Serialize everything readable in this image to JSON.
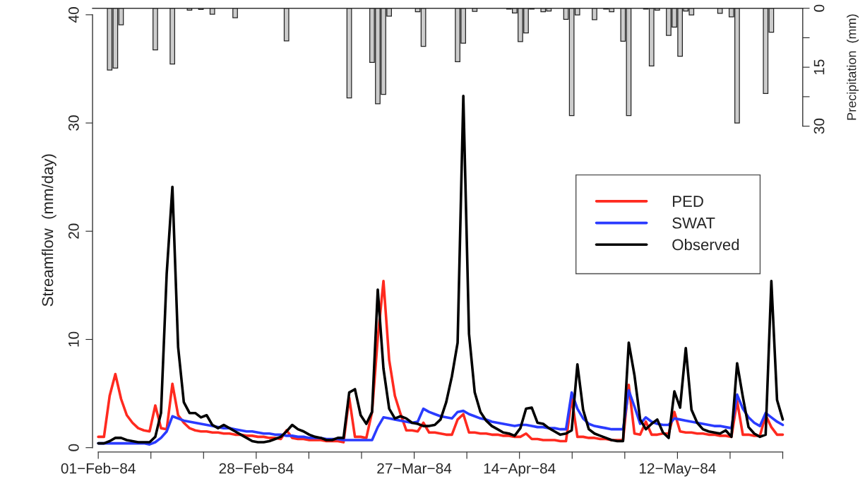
{
  "chart_data": {
    "type": "line",
    "ylabel": "Streamflow  (mm/day)",
    "y2label": "Precipitation  (mm)",
    "x": [
      "1984-02-01",
      "1984-02-02",
      "1984-02-03",
      "1984-02-04",
      "1984-02-05",
      "1984-02-06",
      "1984-02-07",
      "1984-02-08",
      "1984-02-09",
      "1984-02-10",
      "1984-02-11",
      "1984-02-12",
      "1984-02-13",
      "1984-02-14",
      "1984-02-15",
      "1984-02-16",
      "1984-02-17",
      "1984-02-18",
      "1984-02-19",
      "1984-02-20",
      "1984-02-21",
      "1984-02-22",
      "1984-02-23",
      "1984-02-24",
      "1984-02-25",
      "1984-02-26",
      "1984-02-27",
      "1984-02-28",
      "1984-02-29",
      "1984-03-01",
      "1984-03-02",
      "1984-03-03",
      "1984-03-04",
      "1984-03-05",
      "1984-03-06",
      "1984-03-07",
      "1984-03-08",
      "1984-03-09",
      "1984-03-10",
      "1984-03-11",
      "1984-03-12",
      "1984-03-13",
      "1984-03-14",
      "1984-03-15",
      "1984-03-16",
      "1984-03-17",
      "1984-03-18",
      "1984-03-19",
      "1984-03-20",
      "1984-03-21",
      "1984-03-22",
      "1984-03-23",
      "1984-03-24",
      "1984-03-25",
      "1984-03-26",
      "1984-03-27",
      "1984-03-28",
      "1984-03-29",
      "1984-03-30",
      "1984-03-31",
      "1984-04-01",
      "1984-04-02",
      "1984-04-03",
      "1984-04-04",
      "1984-04-05",
      "1984-04-06",
      "1984-04-07",
      "1984-04-08",
      "1984-04-09",
      "1984-04-10",
      "1984-04-11",
      "1984-04-12",
      "1984-04-13",
      "1984-04-14",
      "1984-04-15",
      "1984-04-16",
      "1984-04-17",
      "1984-04-18",
      "1984-04-19",
      "1984-04-20",
      "1984-04-21",
      "1984-04-22",
      "1984-04-23",
      "1984-04-24",
      "1984-04-25",
      "1984-04-26",
      "1984-04-27",
      "1984-04-28",
      "1984-04-29",
      "1984-04-30",
      "1984-05-01",
      "1984-05-02",
      "1984-05-03",
      "1984-05-04",
      "1984-05-05",
      "1984-05-06",
      "1984-05-07",
      "1984-05-08",
      "1984-05-09",
      "1984-05-10",
      "1984-05-11",
      "1984-05-12",
      "1984-05-13",
      "1984-05-14",
      "1984-05-15",
      "1984-05-16",
      "1984-05-17",
      "1984-05-18",
      "1984-05-19",
      "1984-05-20",
      "1984-05-21",
      "1984-05-22",
      "1984-05-23",
      "1984-05-24",
      "1984-05-25",
      "1984-05-26",
      "1984-05-27",
      "1984-05-28",
      "1984-05-29",
      "1984-05-30",
      "1984-05-31"
    ],
    "xlim": [
      "1984-01-31",
      "1984-06-03T12:00"
    ],
    "xticks": [
      {
        "value": "1984-02-01",
        "label": "01−Feb−84"
      },
      {
        "value": "1984-02-10T05:32",
        "label": null
      },
      {
        "value": "1984-02-19T11:05",
        "label": null
      },
      {
        "value": "1984-02-28T16:37",
        "label": "28−Feb−84"
      },
      {
        "value": "1984-03-08T22:09",
        "label": null
      },
      {
        "value": "1984-03-18T03:42",
        "label": null
      },
      {
        "value": "1984-03-27T09:14",
        "label": "27−Mar−84"
      },
      {
        "value": "1984-04-05T14:46",
        "label": null
      },
      {
        "value": "1984-04-14T20:18",
        "label": "14−Apr−84"
      },
      {
        "value": "1984-04-24T01:51",
        "label": null
      },
      {
        "value": "1984-05-03T07:23",
        "label": null
      },
      {
        "value": "1984-05-12T12:55",
        "label": "12−May−84"
      },
      {
        "value": "1984-05-21T18:28",
        "label": null
      },
      {
        "value": "1984-05-31",
        "label": null
      }
    ],
    "ylim": [
      -0.4,
      40.6
    ],
    "yticks": [
      0,
      10,
      20,
      30,
      40
    ],
    "y2lim": [
      112.9,
      0
    ],
    "y2ticks": [
      0,
      {
        "value": 7.5,
        "label": null
      },
      15,
      {
        "value": 22.5,
        "label": null
      },
      30
    ],
    "legend": "right",
    "series": [
      {
        "name": "PED",
        "color": "#ff2a1f",
        "values": [
          1.0,
          1.0,
          4.8,
          6.8,
          4.5,
          3.0,
          2.3,
          1.8,
          1.6,
          1.5,
          3.9,
          1.8,
          1.7,
          5.9,
          3.0,
          2.3,
          1.8,
          1.6,
          1.5,
          1.5,
          1.4,
          1.4,
          1.3,
          1.3,
          1.2,
          1.2,
          1.1,
          1.1,
          1.0,
          1.0,
          0.9,
          0.9,
          0.8,
          1.6,
          0.9,
          0.8,
          0.8,
          0.7,
          0.7,
          0.7,
          0.6,
          0.6,
          0.6,
          0.5,
          4.6,
          1.0,
          1.0,
          0.9,
          3.3,
          10.1,
          15.4,
          8.1,
          4.8,
          3.1,
          1.6,
          1.6,
          1.5,
          2.3,
          1.4,
          1.4,
          1.3,
          1.2,
          1.2,
          2.6,
          3.1,
          1.4,
          1.4,
          1.3,
          1.3,
          1.2,
          1.2,
          1.1,
          1.1,
          1.0,
          1.0,
          1.3,
          0.8,
          0.8,
          0.7,
          0.7,
          0.7,
          0.6,
          0.6,
          4.6,
          1.0,
          1.0,
          0.9,
          0.9,
          0.8,
          0.8,
          0.7,
          0.7,
          0.7,
          5.8,
          1.3,
          1.2,
          2.4,
          1.2,
          1.2,
          1.3,
          1.3,
          3.3,
          1.5,
          1.4,
          1.4,
          1.3,
          1.3,
          1.2,
          1.2,
          1.1,
          1.1,
          1.0,
          4.3,
          1.2,
          1.2,
          1.1,
          1.1,
          3.0,
          1.9,
          1.2,
          1.2
        ]
      },
      {
        "name": "SWAT",
        "color": "#2a3bff",
        "values": [
          0.4,
          0.4,
          0.4,
          0.4,
          0.4,
          0.4,
          0.4,
          0.4,
          0.4,
          0.3,
          0.5,
          0.9,
          1.5,
          2.9,
          2.7,
          2.5,
          2.4,
          2.3,
          2.2,
          2.1,
          2.0,
          1.9,
          1.8,
          1.8,
          1.7,
          1.6,
          1.5,
          1.5,
          1.4,
          1.3,
          1.3,
          1.2,
          1.2,
          1.1,
          1.1,
          1.0,
          1.0,
          0.9,
          0.9,
          0.9,
          0.8,
          0.8,
          0.8,
          0.7,
          0.7,
          0.7,
          0.7,
          0.7,
          0.7,
          1.9,
          2.8,
          2.7,
          2.6,
          2.5,
          2.4,
          2.3,
          2.4,
          3.6,
          3.3,
          3.1,
          2.9,
          2.8,
          2.7,
          3.3,
          3.4,
          3.1,
          2.9,
          2.7,
          2.6,
          2.4,
          2.3,
          2.2,
          2.1,
          2.0,
          2.1,
          2.1,
          2.0,
          1.9,
          1.9,
          1.8,
          1.8,
          1.7,
          1.7,
          5.1,
          3.6,
          2.7,
          2.2,
          2.0,
          1.9,
          1.8,
          1.7,
          1.7,
          1.7,
          5.3,
          3.8,
          2.2,
          2.8,
          2.4,
          2.2,
          2.1,
          2.1,
          2.7,
          2.6,
          2.5,
          2.4,
          2.3,
          2.2,
          2.1,
          2.0,
          2.0,
          1.9,
          1.8,
          4.9,
          3.6,
          2.8,
          2.3,
          2.0,
          3.2,
          2.8,
          2.4,
          2.1
        ]
      },
      {
        "name": "Observed",
        "color": "#000000",
        "values": [
          0.4,
          0.4,
          0.6,
          0.9,
          0.9,
          0.7,
          0.6,
          0.5,
          0.5,
          0.5,
          1.0,
          3.2,
          16.1,
          24.1,
          9.3,
          4.2,
          3.2,
          3.2,
          2.8,
          3.0,
          2.1,
          1.8,
          2.1,
          1.8,
          1.5,
          1.2,
          0.9,
          0.6,
          0.5,
          0.5,
          0.6,
          0.8,
          1.0,
          1.5,
          2.1,
          1.7,
          1.5,
          1.2,
          1.0,
          0.9,
          0.7,
          0.7,
          0.9,
          0.9,
          5.1,
          5.4,
          3.0,
          2.2,
          3.3,
          14.6,
          7.3,
          3.6,
          2.7,
          2.9,
          2.7,
          2.3,
          2.2,
          2.0,
          2.0,
          2.1,
          2.6,
          4.2,
          6.6,
          9.7,
          32.5,
          10.5,
          5.1,
          3.3,
          2.5,
          2.0,
          1.7,
          1.4,
          1.3,
          1.1,
          1.8,
          3.6,
          3.7,
          2.3,
          2.2,
          1.8,
          1.5,
          1.2,
          1.3,
          1.6,
          7.7,
          3.5,
          1.7,
          1.3,
          1.1,
          0.9,
          0.7,
          0.6,
          0.6,
          9.7,
          6.7,
          2.6,
          1.7,
          2.2,
          2.6,
          1.4,
          0.9,
          5.2,
          3.7,
          9.2,
          3.5,
          2.3,
          1.7,
          1.5,
          1.4,
          1.3,
          1.6,
          1.0,
          7.8,
          4.7,
          1.9,
          1.3,
          1.0,
          1.2,
          15.4,
          4.4,
          2.6
        ]
      },
      {
        "type": "bar",
        "axis": "y2",
        "color": "#cccccc",
        "x": [
          "1984-02-03",
          "1984-02-04",
          "1984-02-05",
          "1984-02-11",
          "1984-02-14",
          "1984-02-17",
          "1984-02-19",
          "1984-02-21",
          "1984-02-25",
          "1984-03-05",
          "1984-03-16",
          "1984-03-20",
          "1984-03-21",
          "1984-03-22",
          "1984-03-23",
          "1984-03-28",
          "1984-03-29",
          "1984-04-04",
          "1984-04-05",
          "1984-04-07",
          "1984-04-13",
          "1984-04-14",
          "1984-04-15",
          "1984-04-16",
          "1984-04-17",
          "1984-04-19",
          "1984-04-20",
          "1984-04-23",
          "1984-04-24",
          "1984-04-25",
          "1984-04-28",
          "1984-04-30",
          "1984-05-01",
          "1984-05-03",
          "1984-05-04",
          "1984-05-07",
          "1984-05-08",
          "1984-05-09",
          "1984-05-11",
          "1984-05-12",
          "1984-05-13",
          "1984-05-14",
          "1984-05-15",
          "1984-05-20",
          "1984-05-22",
          "1984-05-23",
          "1984-05-28",
          "1984-05-29"
        ],
        "values": [
          15.7,
          15.2,
          4.2,
          10.6,
          14.2,
          0.5,
          0.3,
          1.5,
          2.4,
          8.3,
          22.8,
          13.8,
          24.3,
          21.9,
          2.0,
          0.9,
          9.7,
          13.6,
          8.9,
          0.8,
          0.2,
          1.2,
          8.5,
          6.3,
          0.2,
          0.9,
          0.7,
          2.8,
          27.3,
          1.7,
          2.9,
          0.2,
          0.9,
          8.4,
          27.3,
          0.2,
          14.7,
          0.5,
          6.9,
          4.8,
          12.2,
          0.7,
          1.7,
          1.3,
          2.2,
          29.2,
          21.7,
          6.1
        ]
      }
    ]
  }
}
